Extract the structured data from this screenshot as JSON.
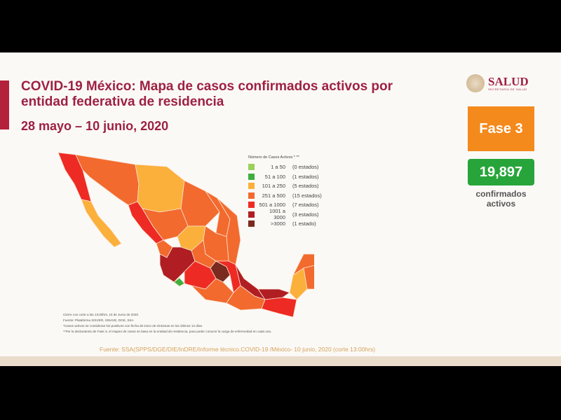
{
  "title": "COVID-19 México: Mapa de casos confirmados activos por entidad federativa de residencia",
  "title_line1": "COVID-19 México: Mapa de casos confirmados activos por",
  "title_line2": "entidad federativa de residencia",
  "date_range": "28 mayo – 10 junio, 2020",
  "logo": {
    "name": "SALUD",
    "subtitle": "SECRETARÍA DE SALUD"
  },
  "phase": "Fase 3",
  "confirmed_active": {
    "value": "19,897",
    "label_line1": "confirmados",
    "label_line2": "activos"
  },
  "legend": {
    "title": "Número de Casos Activos * **",
    "items": [
      {
        "range": "1 a 50",
        "count": "(0 estados)",
        "color": "#9ccf5c"
      },
      {
        "range": "51 a 100",
        "count": "(1 estados)",
        "color": "#3fae3c"
      },
      {
        "range": "101 a 250",
        "count": "(5 estados)",
        "color": "#fbb03b"
      },
      {
        "range": "251 a 500",
        "count": "(15 estados)",
        "color": "#f26a2e"
      },
      {
        "range": "501 a 1000",
        "count": "(7 estados)",
        "color": "#ee2a24"
      },
      {
        "range": "1001 a 3000",
        "count": "(3 estados)",
        "color": "#b01e23"
      },
      {
        "range": ">3000",
        "count": "(1 estado)",
        "color": "#7a2a1e"
      }
    ]
  },
  "notes": [
    "Cierre con corte a las 13:00hrs, 10 de Junio de 2020",
    "Fuente: Plataforma SISVER, SINAVE, DGE, SSA",
    "*Casos activos se consideran los positivos con fecha de inicio de síntomas en los últimos 14 días.",
    "**Por la declaratoria de Fase 3, el mapeo de casos se basa en la entidad de residencia, para poder conocer la carga de enfermedad en cada una."
  ],
  "source": "Fuente: SSA(SPPS/DGE/DIE/InDRE/Informe técnico.COVID-19 /México- 10 junio, 2020 (corte 13:00hrs)"
}
